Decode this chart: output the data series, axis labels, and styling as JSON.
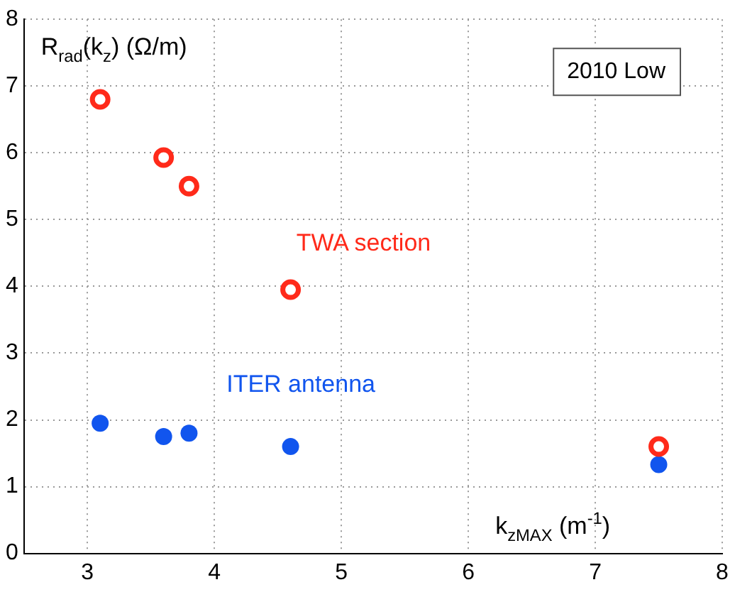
{
  "chart_data": {
    "type": "scatter",
    "xlabel": "k$_{zMAX}$ (m$^{-1}$)",
    "ylabel": "R$_{rad}$(k$_{z}$) (Ω/m)",
    "annotations": [
      "2010 Low"
    ],
    "series": [
      {
        "name": "TWA section",
        "color": "#ff2a1a",
        "marker": "circle",
        "x": [
          3.1,
          3.6,
          3.8,
          4.6,
          7.5
        ],
        "values": [
          6.8,
          5.93,
          5.5,
          3.95,
          1.6
        ]
      },
      {
        "name": "ITER antenna",
        "color": "#1155ee",
        "marker": "circle",
        "x": [
          3.1,
          3.6,
          3.8,
          4.6,
          7.5
        ],
        "values": [
          1.95,
          1.75,
          1.8,
          1.6,
          1.33
        ]
      }
    ],
    "xlim": [
      2.5,
      8
    ],
    "xticks": [
      3,
      4,
      5,
      6,
      7,
      8
    ],
    "ylim": [
      0,
      8
    ],
    "yticks": [
      0,
      1,
      2,
      3,
      4,
      5,
      6,
      7,
      8
    ],
    "grid": true,
    "legend": false
  }
}
